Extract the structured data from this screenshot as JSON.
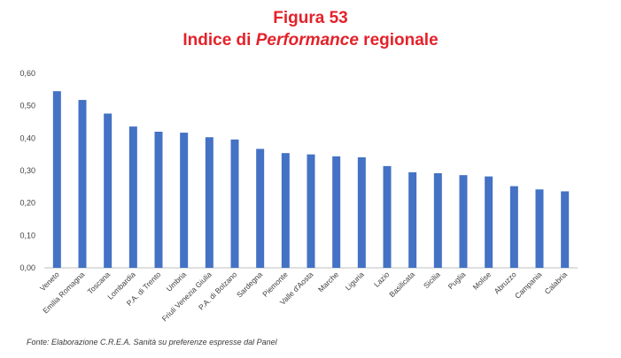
{
  "title": {
    "line1": "Figura 53",
    "line2_pre": "Indice di ",
    "line2_italic": "Performance",
    "line2_post": " regionale"
  },
  "source": "Fonte: Elaborazione C.R.E.A. Sanità su preferenze espresse dal Panel",
  "colors": {
    "bar": "#4472c4",
    "title": "#e3222a",
    "axis": "#bfbfbf"
  },
  "chart_data": {
    "type": "bar",
    "title": "Indice di Performance regionale",
    "xlabel": "",
    "ylabel": "",
    "ylim": [
      0,
      0.6
    ],
    "yticks": [
      "0,00",
      "0,10",
      "0,20",
      "0,30",
      "0,40",
      "0,50",
      "0,60"
    ],
    "grid": false,
    "categories": [
      "Veneto",
      "Emilia Romagna",
      "Toscana",
      "Lombardia",
      "P.A. di Trento",
      "Umbria",
      "Friuli Venezia Giulia",
      "P.A. di Bolzano",
      "Sardegna",
      "Piemonte",
      "Valle d'Aosta",
      "Marche",
      "Liguria",
      "Lazio",
      "Basilicata",
      "Sicilia",
      "Puglia",
      "Molise",
      "Abruzzo",
      "Campania",
      "Calabria"
    ],
    "values": [
      0.545,
      0.518,
      0.476,
      0.436,
      0.42,
      0.417,
      0.403,
      0.396,
      0.367,
      0.354,
      0.35,
      0.344,
      0.341,
      0.314,
      0.295,
      0.292,
      0.286,
      0.282,
      0.252,
      0.242,
      0.236
    ]
  }
}
